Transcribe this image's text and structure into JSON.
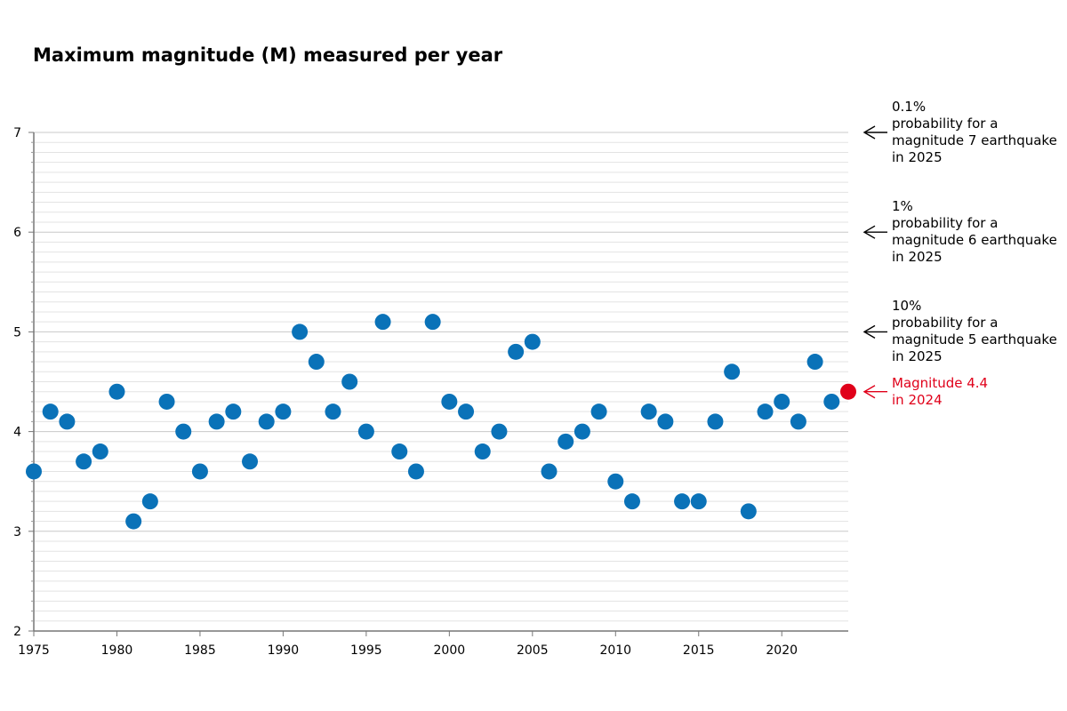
{
  "chart_data": {
    "type": "scatter",
    "title": "Maximum magnitude (M) measured per year",
    "xlabel": "",
    "ylabel": "",
    "xlim": [
      1975,
      2024
    ],
    "ylim": [
      2,
      7
    ],
    "x_ticks": [
      1975,
      1980,
      1985,
      1990,
      1995,
      2000,
      2005,
      2010,
      2015,
      2020
    ],
    "y_ticks": [
      2,
      3,
      4,
      5,
      6,
      7
    ],
    "grid": true,
    "series": [
      {
        "color": "#0a72b8",
        "points": [
          [
            1975,
            3.6
          ],
          [
            1976,
            4.2
          ],
          [
            1977,
            4.1
          ],
          [
            1978,
            3.7
          ],
          [
            1979,
            3.8
          ],
          [
            1980,
            4.4
          ],
          [
            1981,
            3.1
          ],
          [
            1982,
            3.3
          ],
          [
            1983,
            4.3
          ],
          [
            1984,
            4.0
          ],
          [
            1985,
            3.6
          ],
          [
            1986,
            4.1
          ],
          [
            1987,
            4.2
          ],
          [
            1988,
            3.7
          ],
          [
            1989,
            4.1
          ],
          [
            1990,
            4.2
          ],
          [
            1991,
            5.0
          ],
          [
            1992,
            4.7
          ],
          [
            1993,
            4.2
          ],
          [
            1994,
            4.5
          ],
          [
            1995,
            4.0
          ],
          [
            1996,
            5.1
          ],
          [
            1997,
            3.8
          ],
          [
            1998,
            3.6
          ],
          [
            1999,
            5.1
          ],
          [
            2000,
            4.3
          ],
          [
            2001,
            4.2
          ],
          [
            2002,
            3.8
          ],
          [
            2003,
            4.0
          ],
          [
            2004,
            4.8
          ],
          [
            2005,
            4.9
          ],
          [
            2006,
            3.6
          ],
          [
            2007,
            3.9
          ],
          [
            2008,
            4.0
          ],
          [
            2009,
            4.2
          ],
          [
            2010,
            3.5
          ],
          [
            2011,
            3.3
          ],
          [
            2012,
            4.2
          ],
          [
            2013,
            4.1
          ],
          [
            2014,
            3.3
          ],
          [
            2015,
            3.3
          ],
          [
            2016,
            4.1
          ],
          [
            2017,
            4.6
          ],
          [
            2018,
            3.2
          ],
          [
            2019,
            4.2
          ],
          [
            2020,
            4.3
          ],
          [
            2021,
            4.1
          ],
          [
            2022,
            4.7
          ],
          [
            2023,
            4.3
          ]
        ]
      },
      {
        "color": "#e0001a",
        "points": [
          [
            2024,
            4.4
          ]
        ]
      }
    ],
    "annotations": [
      {
        "y": 7,
        "lines": [
          "0.1%",
          "probability for a",
          "magnitude 7 earthquake",
          "in 2025"
        ],
        "color": "#000000"
      },
      {
        "y": 6,
        "lines": [
          "1%",
          "probability for a",
          "magnitude 6 earthquake",
          "in 2025"
        ],
        "color": "#000000"
      },
      {
        "y": 5,
        "lines": [
          "10%",
          "probability for a",
          "magnitude 5 earthquake",
          "in 2025"
        ],
        "color": "#000000"
      },
      {
        "y": 4.4,
        "lines": [
          "Magnitude 4.4",
          "in 2024"
        ],
        "color": "#e0001a"
      }
    ]
  }
}
